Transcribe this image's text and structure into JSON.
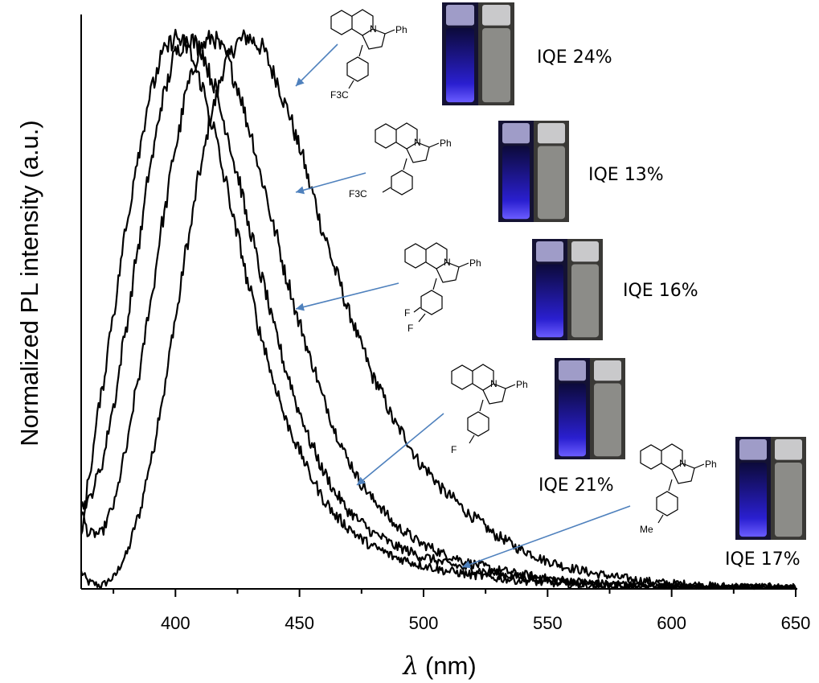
{
  "chart_data": {
    "type": "line",
    "title": "",
    "xlabel_symbol": "λ",
    "xlabel_unit": "(nm)",
    "ylabel": "Normalized PL intensity (a.u.)",
    "xlim": [
      362,
      650
    ],
    "ylim": [
      0,
      1.03
    ],
    "x_ticks": [
      "400",
      "450",
      "500",
      "550",
      "600",
      "650"
    ],
    "grid": false,
    "legend": "none",
    "line_color": "#000000",
    "arrow_color": "#4f81bd",
    "series": [
      {
        "peak_nm": 429,
        "x": [
          362,
          365,
          370,
          375,
          380,
          385,
          390,
          395,
          400,
          405,
          410,
          415,
          420,
          425,
          429,
          435,
          440,
          445,
          450,
          455,
          460,
          465,
          470,
          475,
          480,
          490,
          500,
          510,
          520,
          530,
          540,
          550,
          560,
          570,
          580,
          590,
          600,
          620,
          650
        ],
        "y": [
          0.03,
          0.012,
          0.006,
          0.02,
          0.06,
          0.13,
          0.23,
          0.35,
          0.49,
          0.63,
          0.76,
          0.87,
          0.95,
          0.99,
          1.0,
          0.98,
          0.93,
          0.87,
          0.8,
          0.72,
          0.64,
          0.57,
          0.5,
          0.44,
          0.38,
          0.29,
          0.22,
          0.17,
          0.13,
          0.095,
          0.07,
          0.05,
          0.037,
          0.027,
          0.02,
          0.014,
          0.01,
          0.005,
          0.003
        ]
      },
      {
        "peak_nm": 415,
        "x": [
          362,
          365,
          370,
          375,
          380,
          385,
          390,
          395,
          400,
          405,
          410,
          415,
          420,
          425,
          430,
          435,
          440,
          445,
          450,
          455,
          460,
          465,
          470,
          475,
          480,
          490,
          500,
          510,
          520,
          530,
          540,
          550,
          560,
          570,
          580,
          590,
          600,
          620,
          650
        ],
        "y": [
          0.14,
          0.1,
          0.1,
          0.15,
          0.25,
          0.38,
          0.52,
          0.67,
          0.8,
          0.91,
          0.98,
          1.0,
          0.97,
          0.91,
          0.83,
          0.74,
          0.65,
          0.56,
          0.48,
          0.41,
          0.34,
          0.28,
          0.23,
          0.19,
          0.16,
          0.11,
          0.08,
          0.06,
          0.045,
          0.034,
          0.026,
          0.019,
          0.014,
          0.01,
          0.007,
          0.005,
          0.004,
          0.002,
          0.001
        ]
      },
      {
        "peak_nm": 405,
        "x": [
          362,
          365,
          370,
          375,
          380,
          385,
          390,
          395,
          400,
          405,
          410,
          415,
          420,
          425,
          430,
          435,
          440,
          445,
          450,
          455,
          460,
          465,
          470,
          475,
          480,
          490,
          500,
          510,
          520,
          530,
          540,
          550,
          560,
          570,
          580,
          590,
          600,
          620,
          650
        ],
        "y": [
          0.15,
          0.16,
          0.22,
          0.33,
          0.47,
          0.62,
          0.77,
          0.89,
          0.97,
          1.0,
          0.98,
          0.92,
          0.84,
          0.75,
          0.65,
          0.56,
          0.47,
          0.39,
          0.32,
          0.26,
          0.21,
          0.17,
          0.14,
          0.12,
          0.1,
          0.075,
          0.058,
          0.045,
          0.035,
          0.027,
          0.021,
          0.016,
          0.012,
          0.009,
          0.007,
          0.005,
          0.004,
          0.002,
          0.001
        ]
      },
      {
        "peak_nm": 400,
        "x": [
          362,
          365,
          370,
          375,
          380,
          385,
          390,
          395,
          400,
          405,
          410,
          415,
          420,
          425,
          430,
          435,
          440,
          445,
          450,
          455,
          460,
          465,
          470,
          475,
          480,
          490,
          500,
          510,
          520,
          530,
          540,
          550,
          560,
          570,
          580,
          590,
          600,
          620,
          650
        ],
        "y": [
          0.09,
          0.2,
          0.35,
          0.5,
          0.65,
          0.79,
          0.9,
          0.97,
          1.0,
          0.98,
          0.92,
          0.84,
          0.74,
          0.64,
          0.54,
          0.45,
          0.37,
          0.3,
          0.25,
          0.2,
          0.16,
          0.13,
          0.11,
          0.09,
          0.075,
          0.055,
          0.042,
          0.032,
          0.025,
          0.019,
          0.015,
          0.011,
          0.008,
          0.006,
          0.005,
          0.004,
          0.003,
          0.002,
          0.001
        ]
      }
    ]
  },
  "annotations": [
    {
      "iqe": "IQE 24%",
      "substituent": "F3C",
      "sub_position": "para",
      "ph": "Ph"
    },
    {
      "iqe": "IQE 13%",
      "substituent": "F3C",
      "sub_position": "meta",
      "ph": "Ph"
    },
    {
      "iqe": "IQE 16%",
      "substituent": "F",
      "substituent2": "F",
      "sub_position": "3,4-difluoro",
      "ph": "Ph"
    },
    {
      "iqe": "IQE 21%",
      "substituent": "F",
      "sub_position": "para",
      "ph": "Ph"
    },
    {
      "iqe": "IQE 17%",
      "substituent": "Me",
      "sub_position": "para",
      "ph": "Ph"
    }
  ],
  "colors": {
    "vial_glow": "#2a1fd0",
    "vial_dark": "#0c0a3a",
    "vial_plain": "#8c8c88",
    "cap_silver": "#c9c9cb"
  }
}
